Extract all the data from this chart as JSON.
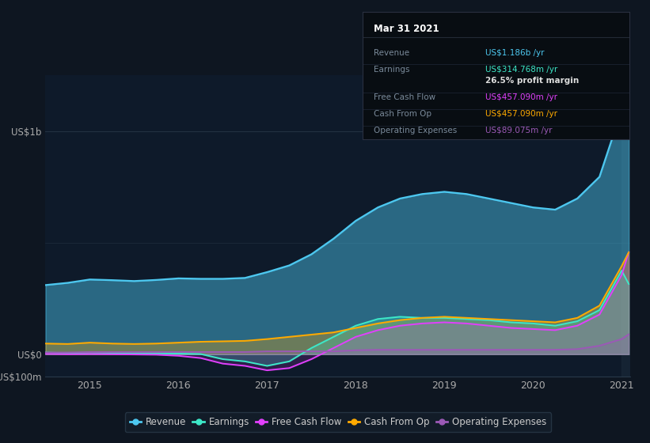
{
  "bg_color": "#0e1621",
  "plot_bg_color": "#0e1a2a",
  "info_box": {
    "title": "Mar 31 2021",
    "rows": [
      {
        "label": "Revenue",
        "value": "US$1.186b /yr",
        "value_color": "#4dc8f0"
      },
      {
        "label": "Earnings",
        "value": "US$314.768m /yr",
        "value_color": "#3de8c8"
      },
      {
        "label": "",
        "value": "26.5% profit margin",
        "value_color": "#dddddd",
        "bold": true
      },
      {
        "label": "Free Cash Flow",
        "value": "US$457.090m /yr",
        "value_color": "#e040fb"
      },
      {
        "label": "Cash From Op",
        "value": "US$457.090m /yr",
        "value_color": "#ffaa00"
      },
      {
        "label": "Operating Expenses",
        "value": "US$89.075m /yr",
        "value_color": "#9b59b6"
      }
    ]
  },
  "series": {
    "revenue": {
      "color": "#4dc8f0",
      "fill_alpha": 0.55,
      "label": "Revenue"
    },
    "earnings": {
      "color": "#3de8c8",
      "fill_alpha": 0.3,
      "label": "Earnings"
    },
    "free_cash_flow": {
      "color": "#e040fb",
      "fill_alpha": 0.2,
      "label": "Free Cash Flow"
    },
    "cash_from_op": {
      "color": "#ffaa00",
      "fill_alpha": 0.35,
      "label": "Cash From Op"
    },
    "operating_expenses": {
      "color": "#9b59b6",
      "fill_alpha": 0.25,
      "label": "Operating Expenses"
    }
  },
  "x": [
    2014.5,
    2014.75,
    2015.0,
    2015.25,
    2015.5,
    2015.75,
    2016.0,
    2016.25,
    2016.5,
    2016.75,
    2017.0,
    2017.25,
    2017.5,
    2017.75,
    2018.0,
    2018.25,
    2018.5,
    2018.75,
    2019.0,
    2019.25,
    2019.5,
    2019.75,
    2020.0,
    2020.25,
    2020.5,
    2020.75,
    2021.0,
    2021.08
  ],
  "revenue": [
    310,
    320,
    335,
    332,
    328,
    333,
    340,
    338,
    338,
    342,
    368,
    398,
    448,
    518,
    598,
    658,
    698,
    718,
    728,
    718,
    698,
    678,
    658,
    648,
    698,
    795,
    1095,
    1186
  ],
  "earnings": [
    8,
    5,
    8,
    6,
    3,
    3,
    3,
    1,
    -22,
    -32,
    -52,
    -32,
    28,
    78,
    128,
    158,
    168,
    163,
    163,
    158,
    153,
    143,
    138,
    128,
    148,
    198,
    375,
    315
  ],
  "free_cash_flow": [
    2,
    0,
    1,
    0,
    -1,
    -2,
    -7,
    -17,
    -42,
    -52,
    -72,
    -62,
    -22,
    28,
    78,
    108,
    128,
    138,
    143,
    138,
    128,
    118,
    113,
    108,
    128,
    178,
    355,
    457
  ],
  "cash_from_op": [
    48,
    46,
    52,
    48,
    46,
    48,
    52,
    56,
    58,
    60,
    68,
    78,
    88,
    98,
    118,
    138,
    153,
    163,
    168,
    163,
    158,
    153,
    148,
    143,
    163,
    218,
    395,
    457
  ],
  "operating_expenses": [
    8,
    8,
    10,
    10,
    10,
    10,
    10,
    10,
    10,
    10,
    13,
    13,
    13,
    13,
    18,
    20,
    20,
    20,
    20,
    20,
    20,
    20,
    20,
    20,
    23,
    38,
    68,
    89
  ],
  "xlim": [
    2014.5,
    2021.1
  ],
  "ylim": [
    -100,
    1250
  ],
  "yticks": [
    1000,
    0,
    -100
  ],
  "ytick_labels": [
    "US$1b",
    "US$0",
    "-US$100m"
  ],
  "xtick_positions": [
    2015.0,
    2016.0,
    2017.0,
    2018.0,
    2019.0,
    2020.0,
    2021.0
  ],
  "xtick_labels": [
    "2015",
    "2016",
    "2017",
    "2018",
    "2019",
    "2020",
    "2021"
  ],
  "highlight_x": 2021.0,
  "legend": [
    {
      "label": "Revenue",
      "color": "#4dc8f0"
    },
    {
      "label": "Earnings",
      "color": "#3de8c8"
    },
    {
      "label": "Free Cash Flow",
      "color": "#e040fb"
    },
    {
      "label": "Cash From Op",
      "color": "#ffaa00"
    },
    {
      "label": "Operating Expenses",
      "color": "#9b59b6"
    }
  ]
}
